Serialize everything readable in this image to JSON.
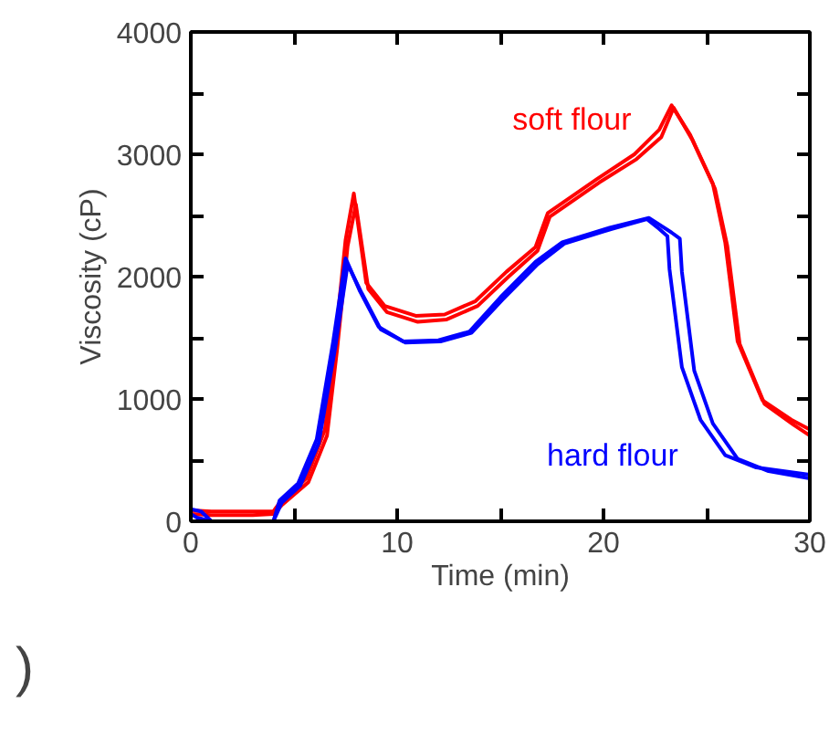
{
  "chart_data": {
    "type": "line",
    "xlabel": "Time (min)",
    "ylabel": "Viscosity (cP)",
    "xlim": [
      0,
      30
    ],
    "ylim": [
      0,
      4000
    ],
    "xticks": [
      0,
      {
        "value": 5,
        "label": null
      },
      10,
      {
        "value": 15,
        "label": null
      },
      20,
      {
        "value": 25,
        "label": null
      },
      30
    ],
    "yticks": [
      0,
      {
        "value": 500,
        "label": null
      },
      1000,
      {
        "value": 1500,
        "label": null
      },
      2000,
      {
        "value": 2500,
        "label": null
      },
      3000,
      {
        "value": 3500,
        "label": null
      },
      4000
    ],
    "marker": "none",
    "line_style": "solid",
    "annotations": [
      ")"
    ],
    "series": [
      {
        "name": "soft flour",
        "color": "#ff0000",
        "x": [
          0,
          1,
          2,
          3,
          4,
          4.3,
          5.6,
          6.5,
          7.0,
          7.5,
          7.9,
          8.5,
          9.4,
          10.9,
          12.3,
          13.8,
          15.3,
          16.7,
          17.3,
          19.7,
          21.5,
          22.7,
          23.3,
          24.2,
          25.3,
          25.9,
          26.5,
          27.7,
          29.1,
          30
        ],
        "values": [
          90,
          80,
          80,
          80,
          80,
          150,
          350,
          750,
          1470,
          2300,
          2680,
          1950,
          1760,
          1680,
          1690,
          1800,
          2040,
          2240,
          2520,
          2800,
          3000,
          3200,
          3400,
          3160,
          2760,
          2280,
          1470,
          990,
          830,
          750
        ]
      },
      {
        "color": "#ff0000",
        "x": [
          0,
          1,
          2,
          3,
          4,
          4.4,
          5.7,
          6.6,
          7.1,
          7.6,
          8.0,
          8.6,
          9.5,
          11.0,
          12.4,
          13.9,
          15.4,
          16.8,
          17.4,
          19.8,
          21.6,
          22.8,
          23.4,
          24.3,
          25.4,
          26.0,
          26.6,
          27.8,
          29.2,
          30
        ],
        "values": [
          60,
          50,
          50,
          50,
          60,
          130,
          320,
          700,
          1420,
          2250,
          2590,
          1900,
          1710,
          1630,
          1650,
          1760,
          2000,
          2210,
          2490,
          2770,
          2960,
          3140,
          3380,
          3120,
          2720,
          2250,
          1450,
          960,
          790,
          700
        ]
      },
      {
        "name": "hard flour",
        "color": "#0000ff",
        "x": [
          0,
          0.5,
          1,
          2,
          3,
          4,
          4.3,
          5.2,
          6.1,
          6.9,
          7.5,
          8.2,
          9.1,
          10.3,
          12.0,
          13.5,
          15.0,
          16.7,
          18.0,
          20.3,
          22.2,
          23.3,
          23.7,
          23.8,
          24.4,
          25.3,
          26.5,
          28.0,
          30
        ],
        "values": [
          100,
          80,
          0,
          0,
          0,
          0,
          170,
          310,
          670,
          1470,
          2150,
          1880,
          1590,
          1470,
          1480,
          1550,
          1830,
          2120,
          2280,
          2400,
          2480,
          2360,
          2310,
          2040,
          1230,
          800,
          510,
          410,
          350
        ]
      },
      {
        "color": "#0000ff",
        "x": [
          0,
          0.3,
          1,
          2,
          3,
          4,
          4.4,
          5.3,
          6.2,
          7.0,
          7.6,
          8.3,
          9.2,
          10.4,
          12.1,
          13.6,
          15.1,
          16.8,
          18.1,
          20.4,
          22.1,
          22.7,
          23.1,
          23.2,
          23.8,
          24.7,
          25.9,
          27.4,
          30
        ],
        "values": [
          60,
          30,
          0,
          0,
          0,
          0,
          150,
          290,
          640,
          1420,
          2100,
          1860,
          1570,
          1460,
          1470,
          1540,
          1810,
          2100,
          2270,
          2390,
          2470,
          2390,
          2330,
          2060,
          1260,
          830,
          540,
          440,
          380
        ]
      }
    ]
  }
}
